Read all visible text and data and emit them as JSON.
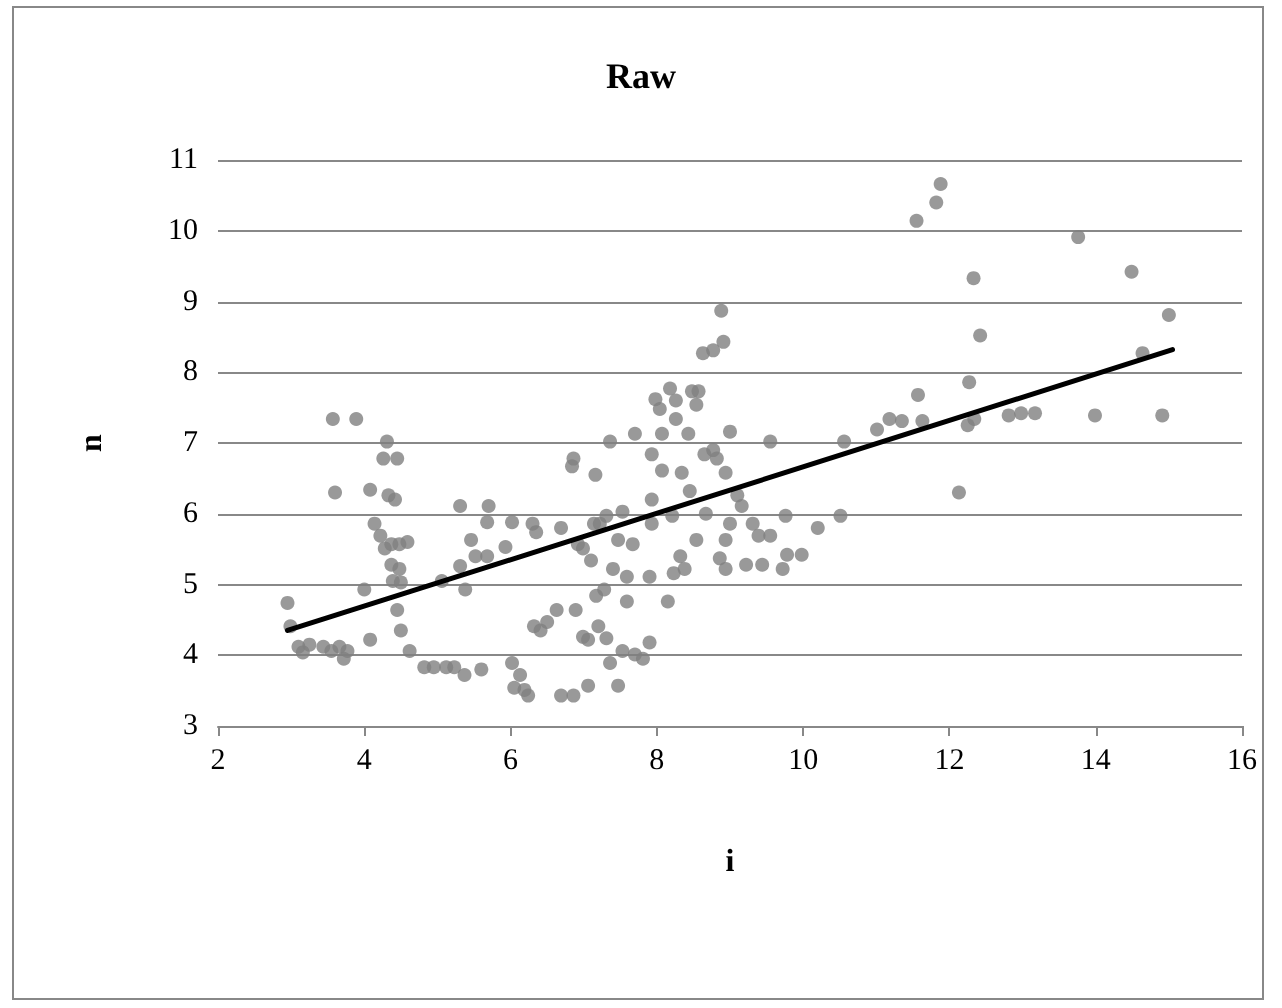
{
  "chart_data": {
    "type": "scatter",
    "title": "Raw",
    "xlabel": "i",
    "ylabel": "n",
    "xlim": [
      2,
      16
    ],
    "xticks": [
      2,
      4,
      6,
      8,
      10,
      12,
      14,
      16
    ],
    "ylim": [
      3,
      11
    ],
    "yticks": [
      3,
      4,
      5,
      6,
      7,
      8,
      9,
      10,
      11
    ],
    "grid": "y",
    "series": [
      {
        "color": "#808080",
        "marker": "circle",
        "x": [
          2.95,
          2.99,
          3.1,
          3.16,
          3.25,
          3.44,
          3.55,
          3.66,
          3.72,
          3.77,
          3.57,
          3.89,
          3.6,
          4.0,
          4.08,
          4.08,
          4.14,
          4.22,
          4.28,
          4.31,
          4.26,
          4.45,
          4.33,
          4.42,
          4.37,
          4.48,
          4.59,
          4.37,
          4.48,
          4.39,
          4.5,
          4.45,
          4.5,
          4.62,
          4.82,
          4.95,
          5.12,
          5.23,
          5.37,
          5.6,
          5.06,
          5.31,
          5.38,
          5.31,
          5.46,
          5.52,
          5.68,
          5.68,
          5.7,
          5.93,
          6.02,
          6.02,
          6.05,
          6.13,
          6.19,
          6.24,
          6.3,
          6.35,
          6.32,
          6.41,
          6.5,
          6.63,
          6.69,
          6.86,
          7.06,
          6.69,
          6.84,
          6.86,
          6.89,
          6.92,
          6.99,
          6.99,
          7.06,
          7.14,
          7.16,
          7.1,
          7.2,
          7.31,
          7.36,
          7.47,
          7.17,
          7.28,
          7.22,
          7.31,
          7.36,
          7.4,
          7.47,
          7.53,
          7.59,
          7.59,
          7.67,
          7.53,
          7.7,
          7.81,
          7.9,
          7.7,
          7.93,
          7.93,
          7.93,
          7.9,
          7.98,
          8.04,
          8.07,
          8.07,
          8.15,
          8.18,
          8.26,
          8.26,
          8.21,
          8.23,
          8.32,
          8.38,
          8.34,
          8.43,
          8.45,
          8.48,
          8.57,
          8.54,
          8.54,
          8.63,
          8.77,
          8.88,
          8.91,
          8.65,
          8.67,
          8.77,
          8.82,
          8.86,
          8.94,
          8.94,
          8.94,
          9.0,
          9.0,
          9.1,
          9.16,
          9.22,
          9.31,
          9.39,
          9.44,
          9.55,
          9.55,
          9.72,
          9.76,
          9.78,
          9.98,
          10.2,
          10.51,
          10.56,
          11.01,
          11.18,
          11.35,
          11.55,
          11.82,
          11.88,
          11.57,
          11.63,
          12.13,
          12.27,
          12.25,
          12.34,
          12.33,
          12.42,
          12.81,
          12.98,
          13.17,
          13.76,
          13.99,
          14.49,
          14.64,
          14.91,
          15.0
        ],
        "values": [
          4.74,
          4.41,
          4.12,
          4.04,
          4.15,
          4.12,
          4.06,
          4.12,
          3.95,
          4.06,
          7.34,
          7.34,
          6.3,
          4.93,
          4.22,
          6.34,
          5.86,
          5.69,
          5.51,
          7.02,
          6.78,
          6.78,
          6.26,
          6.2,
          5.57,
          5.57,
          5.6,
          5.28,
          5.22,
          5.05,
          5.03,
          4.64,
          4.35,
          4.06,
          3.83,
          3.83,
          3.83,
          3.83,
          3.72,
          3.8,
          5.05,
          5.26,
          4.93,
          6.11,
          5.63,
          5.4,
          5.4,
          5.88,
          6.11,
          5.53,
          5.88,
          3.89,
          3.54,
          3.72,
          3.51,
          3.43,
          5.86,
          5.74,
          4.41,
          4.35,
          4.47,
          4.64,
          3.43,
          3.43,
          3.57,
          5.8,
          6.67,
          6.78,
          4.64,
          5.57,
          5.51,
          4.26,
          4.22,
          5.86,
          6.55,
          5.34,
          4.41,
          4.24,
          3.89,
          3.57,
          4.84,
          4.93,
          5.86,
          5.97,
          7.02,
          5.22,
          5.63,
          6.03,
          5.11,
          4.76,
          5.57,
          4.06,
          4.01,
          3.95,
          4.18,
          7.13,
          6.84,
          5.86,
          6.2,
          5.11,
          7.62,
          7.48,
          7.13,
          6.61,
          4.76,
          7.77,
          7.6,
          7.34,
          5.97,
          5.16,
          5.4,
          5.22,
          6.58,
          7.13,
          6.32,
          7.73,
          7.73,
          7.54,
          5.63,
          8.27,
          8.31,
          8.87,
          8.43,
          6.84,
          6.0,
          6.9,
          6.78,
          5.37,
          5.22,
          5.63,
          6.58,
          7.16,
          5.86,
          6.26,
          6.11,
          5.28,
          5.86,
          5.69,
          5.28,
          7.02,
          5.69,
          5.22,
          5.97,
          5.42,
          5.42,
          5.8,
          5.97,
          7.02,
          7.19,
          7.34,
          7.31,
          10.14,
          10.4,
          10.66,
          7.68,
          7.31,
          6.3,
          7.86,
          7.25,
          7.34,
          9.33,
          8.52,
          7.39,
          7.42,
          7.42,
          9.91,
          7.39,
          9.42,
          8.27,
          7.39,
          8.81
        ]
      },
      {
        "type": "line",
        "color": "#000000",
        "marker": "none",
        "line_style": "solid",
        "x": [
          2.95,
          15.05
        ],
        "values": [
          4.35,
          8.32
        ]
      }
    ]
  }
}
